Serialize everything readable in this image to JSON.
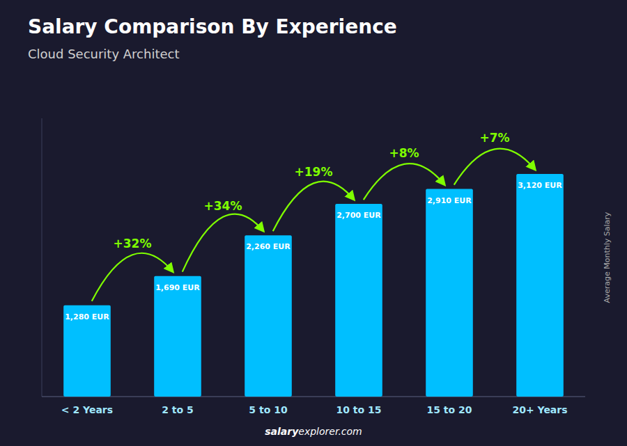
{
  "chart_data": {
    "type": "bar",
    "title": "Salary Comparison By Experience",
    "subtitle": "Cloud Security Architect",
    "ylabel": "Average Monthly Salary",
    "categories": [
      "< 2 Years",
      "2 to 5",
      "5 to 10",
      "10 to 15",
      "15 to 20",
      "20+ Years"
    ],
    "values": [
      1280,
      1690,
      2260,
      2700,
      2910,
      3120
    ],
    "value_labels": [
      "1,280 EUR",
      "1,690 EUR",
      "2,260 EUR",
      "2,700 EUR",
      "2,910 EUR",
      "3,120 EUR"
    ],
    "data_labels": true,
    "annotations": [
      "+32%",
      "+34%",
      "+19%",
      "+8%",
      "+7%"
    ],
    "footer": [
      "salary",
      "explorer.com"
    ],
    "color": "#00bfff",
    "ylim": [
      0,
      3900
    ],
    "tick_labels": "x",
    "grid": false
  }
}
